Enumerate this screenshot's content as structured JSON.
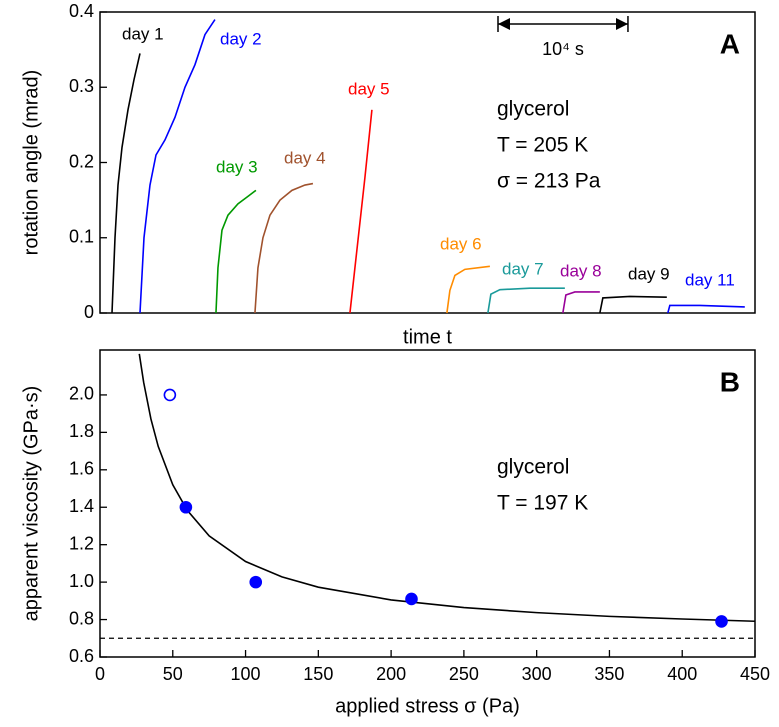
{
  "chart_data": [
    {
      "type": "line",
      "panel_label": "A",
      "ylabel": "rotation angle (mrad)",
      "xlabel": "time t",
      "xlim": [
        0,
        50400
      ],
      "ylim": [
        0,
        0.4
      ],
      "yticks": [
        0,
        0.1,
        0.2,
        0.3,
        0.4
      ],
      "scale_bar": {
        "value": 10000,
        "label": "10⁴ s"
      },
      "annotations": [
        "glycerol",
        "T = 205 K",
        "σ = 213 Pa"
      ],
      "series": [
        {
          "name": "day 1",
          "color": "#000000",
          "x": [
            923,
            1154,
            1385,
            1692,
            2154,
            2615,
            3077
          ],
          "values": [
            0,
            0.1,
            0.17,
            0.22,
            0.27,
            0.31,
            0.345
          ]
        },
        {
          "name": "day 2",
          "color": "#0000ff",
          "x": [
            3077,
            3385,
            3846,
            4308,
            5000,
            5769,
            6538,
            7308,
            8077,
            8846
          ],
          "values": [
            0,
            0.1,
            0.17,
            0.21,
            0.23,
            0.26,
            0.3,
            0.33,
            0.37,
            0.39
          ]
        },
        {
          "name": "day 3",
          "color": "#009900",
          "x": [
            8923,
            9077,
            9385,
            9846,
            10615,
            11385,
            12000
          ],
          "values": [
            0,
            0.06,
            0.11,
            0.13,
            0.145,
            0.155,
            0.163
          ]
        },
        {
          "name": "day 4",
          "color": "#a0522d",
          "x": [
            11923,
            12154,
            12538,
            13077,
            13846,
            14769,
            15769,
            16385
          ],
          "values": [
            0,
            0.06,
            0.1,
            0.13,
            0.15,
            0.163,
            0.17,
            0.172
          ]
        },
        {
          "name": "day 5",
          "color": "#ff0000",
          "x": [
            19231,
            19615,
            20000,
            20385,
            20923
          ],
          "values": [
            0,
            0.06,
            0.12,
            0.18,
            0.27
          ]
        },
        {
          "name": "day 6",
          "color": "#ff8c00",
          "x": [
            26692,
            26923,
            27308,
            28077,
            30000
          ],
          "values": [
            0,
            0.03,
            0.05,
            0.058,
            0.062
          ]
        },
        {
          "name": "day 7",
          "color": "#1a9a9a",
          "x": [
            29846,
            30077,
            30769,
            33077,
            35769
          ],
          "values": [
            0,
            0.025,
            0.031,
            0.033,
            0.033
          ]
        },
        {
          "name": "day 8",
          "color": "#990099",
          "x": [
            35615,
            35846,
            36538,
            38462
          ],
          "values": [
            0,
            0.024,
            0.028,
            0.028
          ]
        },
        {
          "name": "day 9",
          "color": "#000000",
          "x": [
            38462,
            38692,
            40769,
            43615
          ],
          "values": [
            0,
            0.02,
            0.022,
            0.021
          ]
        },
        {
          "name": "day 11",
          "color": "#0000ff",
          "x": [
            43692,
            43846,
            46154,
            49615
          ],
          "values": [
            0,
            0.01,
            0.01,
            0.008
          ]
        }
      ]
    },
    {
      "type": "scatter",
      "panel_label": "B",
      "ylabel": "apparent viscosity (GPa·s)",
      "xlabel": "applied stress σ (Pa)",
      "xlim": [
        0,
        450
      ],
      "ylim": [
        0.6,
        2.24
      ],
      "xticks": [
        0,
        50,
        100,
        150,
        200,
        250,
        300,
        350,
        400,
        450
      ],
      "yticks": [
        0.6,
        0.8,
        {
          "value": 1,
          "label": "1.0"
        },
        1.2,
        1.4,
        1.6,
        1.8,
        {
          "value": 2,
          "label": "2.0"
        }
      ],
      "annotations": [
        "glycerol",
        "T = 197 K"
      ],
      "series": [
        {
          "color": "#0000ff",
          "x": [
            48,
            59,
            107,
            214,
            427
          ],
          "values": [
            2,
            1.4,
            1,
            0.91,
            0.79
          ],
          "filled": [
            false,
            true,
            true,
            true,
            true
          ]
        }
      ],
      "fit_line": {
        "color": "#000000",
        "x": [
          27,
          30,
          35,
          40,
          50,
          60,
          75,
          100,
          125,
          150,
          200,
          250,
          300,
          350,
          400,
          450
        ],
        "values": [
          2.219,
          2.067,
          1.871,
          1.725,
          1.52,
          1.383,
          1.247,
          1.11,
          1.028,
          0.973,
          0.905,
          0.864,
          0.837,
          0.817,
          0.803,
          0.791
        ]
      },
      "hline": {
        "value": 0.7,
        "dashed": true
      }
    }
  ]
}
